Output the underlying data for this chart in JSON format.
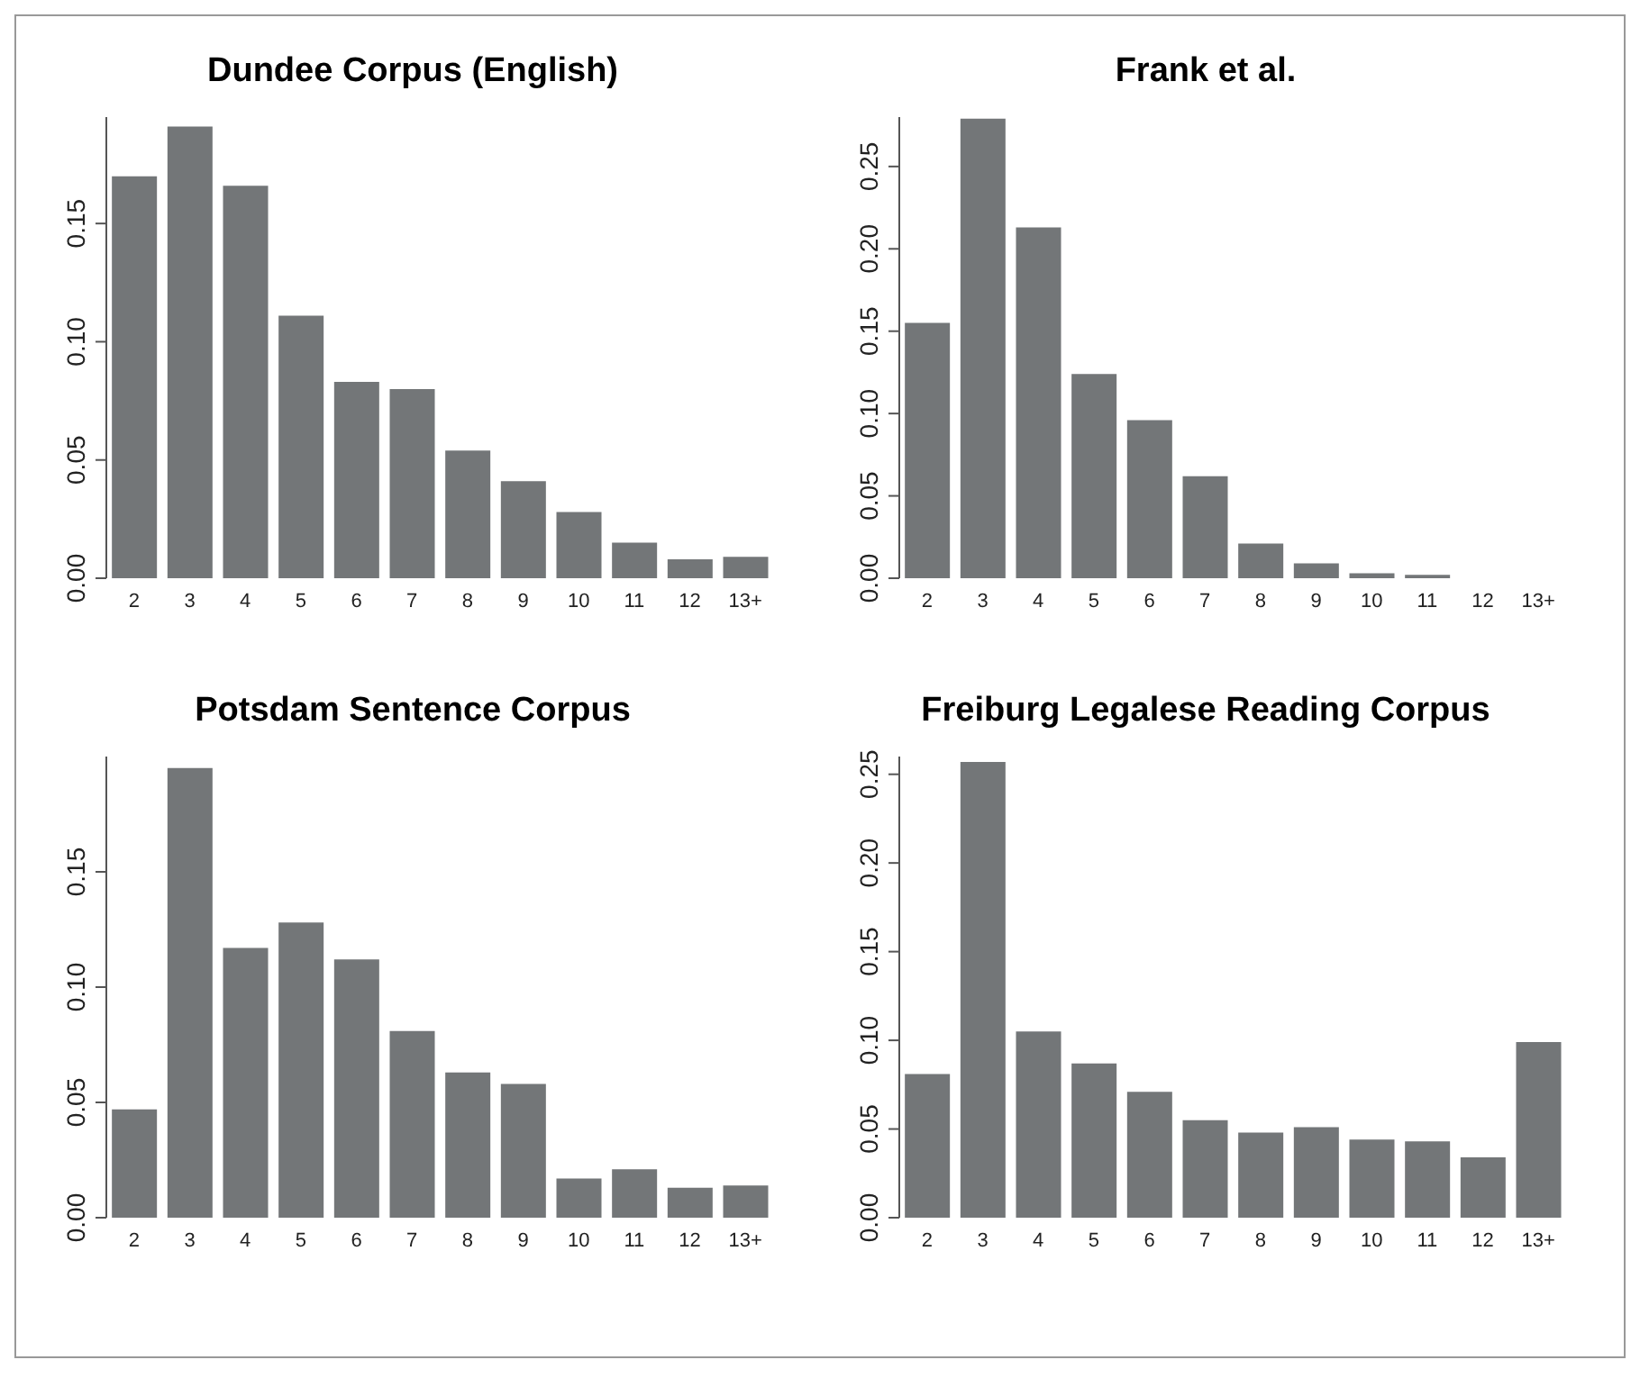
{
  "chart_data": [
    {
      "type": "bar",
      "title": "Dundee Corpus (English)",
      "categories": [
        "2",
        "3",
        "4",
        "5",
        "6",
        "7",
        "8",
        "9",
        "10",
        "11",
        "12",
        "13+"
      ],
      "values": [
        0.17,
        0.191,
        0.166,
        0.111,
        0.083,
        0.08,
        0.054,
        0.041,
        0.028,
        0.015,
        0.008,
        0.009
      ],
      "color": "#737678",
      "ylim": [
        0,
        0.195
      ],
      "yticks": [
        {
          "value": 0,
          "label": "0.00"
        },
        {
          "value": 0.05,
          "label": "0.05"
        },
        {
          "value": 0.1,
          "label": "0.10"
        },
        {
          "value": 0.15,
          "label": "0.15"
        }
      ],
      "grid": false
    },
    {
      "type": "bar",
      "title": "Frank et al.",
      "categories": [
        "2",
        "3",
        "4",
        "5",
        "6",
        "7",
        "8",
        "9",
        "10",
        "11",
        "12",
        "13+"
      ],
      "values": [
        0.155,
        0.279,
        0.213,
        0.124,
        0.096,
        0.062,
        0.021,
        0.009,
        0.003,
        0.002,
        0,
        0
      ],
      "color": "#737678",
      "ylim": [
        0,
        0.28
      ],
      "yticks": [
        {
          "value": 0,
          "label": "0.00"
        },
        {
          "value": 0.05,
          "label": "0.05"
        },
        {
          "value": 0.1,
          "label": "0.10"
        },
        {
          "value": 0.15,
          "label": "0.15"
        },
        {
          "value": 0.2,
          "label": "0.20"
        },
        {
          "value": 0.25,
          "label": "0.25"
        }
      ],
      "grid": false
    },
    {
      "type": "bar",
      "title": "Potsdam Sentence Corpus",
      "categories": [
        "2",
        "3",
        "4",
        "5",
        "6",
        "7",
        "8",
        "9",
        "10",
        "11",
        "12",
        "13+"
      ],
      "values": [
        0.047,
        0.195,
        0.117,
        0.128,
        0.112,
        0.081,
        0.063,
        0.058,
        0.017,
        0.021,
        0.013,
        0.014
      ],
      "color": "#737678",
      "ylim": [
        0,
        0.2
      ],
      "yticks": [
        {
          "value": 0,
          "label": "0.00"
        },
        {
          "value": 0.05,
          "label": "0.05"
        },
        {
          "value": 0.1,
          "label": "0.10"
        },
        {
          "value": 0.15,
          "label": "0.15"
        }
      ],
      "grid": false
    },
    {
      "type": "bar",
      "title": "Freiburg Legalese Reading Corpus",
      "categories": [
        "2",
        "3",
        "4",
        "5",
        "6",
        "7",
        "8",
        "9",
        "10",
        "11",
        "12",
        "13+"
      ],
      "values": [
        0.081,
        0.257,
        0.105,
        0.087,
        0.071,
        0.055,
        0.048,
        0.051,
        0.044,
        0.043,
        0.034,
        0.099
      ],
      "color": "#737678",
      "ylim": [
        0,
        0.26
      ],
      "yticks": [
        {
          "value": 0,
          "label": "0.00"
        },
        {
          "value": 0.05,
          "label": "0.05"
        },
        {
          "value": 0.1,
          "label": "0.10"
        },
        {
          "value": 0.15,
          "label": "0.15"
        },
        {
          "value": 0.2,
          "label": "0.20"
        },
        {
          "value": 0.25,
          "label": "0.25"
        }
      ],
      "grid": false
    }
  ]
}
